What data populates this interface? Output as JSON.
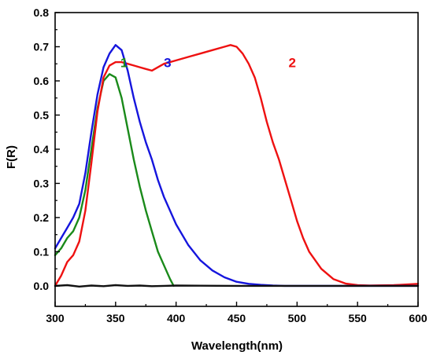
{
  "chart_data": {
    "type": "line",
    "xlabel": "Wavelength(nm)",
    "ylabel": "F(R)",
    "xlim": [
      300,
      600
    ],
    "ylim": [
      -0.06,
      0.8
    ],
    "xticks": [
      300,
      350,
      400,
      450,
      500,
      550,
      600
    ],
    "xtick_labels": [
      "300",
      "350",
      "400",
      "450",
      "500",
      "550",
      "600"
    ],
    "yticks": [
      0.0,
      0.1,
      0.2,
      0.3,
      0.4,
      0.5,
      0.6,
      0.7,
      0.8
    ],
    "ytick_labels": [
      "0.0",
      "0.1",
      "0.2",
      "0.3",
      "0.4",
      "0.5",
      "0.6",
      "0.7",
      "0.8"
    ],
    "grid": false,
    "series": [
      {
        "label": "1",
        "color": "#1a8a1a",
        "x": [
          300,
          305,
          310,
          315,
          320,
          325,
          330,
          335,
          340,
          345,
          350,
          355,
          360,
          365,
          370,
          375,
          380,
          385,
          390,
          395,
          398
        ],
        "y": [
          0.09,
          0.11,
          0.14,
          0.16,
          0.2,
          0.28,
          0.4,
          0.52,
          0.6,
          0.62,
          0.61,
          0.55,
          0.46,
          0.37,
          0.29,
          0.22,
          0.16,
          0.1,
          0.06,
          0.02,
          0.0
        ]
      },
      {
        "label": "2",
        "color": "#ee1111",
        "x": [
          300,
          305,
          310,
          315,
          320,
          325,
          330,
          335,
          340,
          345,
          350,
          355,
          360,
          365,
          370,
          375,
          380,
          385,
          390,
          400,
          410,
          420,
          430,
          440,
          445,
          450,
          455,
          460,
          465,
          470,
          475,
          480,
          485,
          490,
          495,
          500,
          505,
          510,
          520,
          530,
          540,
          550,
          560,
          580,
          600
        ],
        "y": [
          0.0,
          0.03,
          0.07,
          0.09,
          0.13,
          0.22,
          0.36,
          0.51,
          0.61,
          0.645,
          0.655,
          0.655,
          0.65,
          0.645,
          0.64,
          0.635,
          0.63,
          0.64,
          0.65,
          0.66,
          0.67,
          0.68,
          0.69,
          0.7,
          0.705,
          0.7,
          0.68,
          0.65,
          0.61,
          0.55,
          0.48,
          0.42,
          0.37,
          0.31,
          0.25,
          0.19,
          0.14,
          0.1,
          0.05,
          0.02,
          0.007,
          0.002,
          0.001,
          0.002,
          0.006
        ]
      },
      {
        "label": "3",
        "color": "#1515dd",
        "x": [
          300,
          305,
          310,
          315,
          320,
          325,
          330,
          335,
          340,
          345,
          350,
          355,
          360,
          365,
          370,
          375,
          380,
          385,
          390,
          395,
          400,
          410,
          420,
          430,
          440,
          450,
          460,
          470,
          480,
          490,
          500,
          550,
          600
        ],
        "y": [
          0.11,
          0.14,
          0.17,
          0.2,
          0.24,
          0.33,
          0.45,
          0.56,
          0.64,
          0.68,
          0.705,
          0.69,
          0.63,
          0.55,
          0.48,
          0.42,
          0.37,
          0.31,
          0.26,
          0.22,
          0.18,
          0.12,
          0.075,
          0.045,
          0.025,
          0.012,
          0.006,
          0.003,
          0.001,
          0.0,
          0.0,
          0.0,
          0.0
        ]
      },
      {
        "label": "",
        "color": "#111111",
        "x": [
          300,
          310,
          320,
          330,
          340,
          350,
          360,
          370,
          380,
          390,
          400,
          450,
          500,
          550,
          600
        ],
        "y": [
          0.0,
          0.002,
          -0.002,
          0.001,
          -0.001,
          0.002,
          0.0,
          0.001,
          -0.001,
          0.0,
          0.001,
          0.0,
          0.0,
          0.0,
          0.0
        ]
      }
    ],
    "annotations": [
      {
        "text": "1",
        "x": 357,
        "y": 0.64,
        "color": "#1a8a1a"
      },
      {
        "text": "3",
        "x": 393,
        "y": 0.64,
        "color": "#1515dd"
      },
      {
        "text": "2",
        "x": 496,
        "y": 0.64,
        "color": "#ee1111"
      }
    ]
  }
}
